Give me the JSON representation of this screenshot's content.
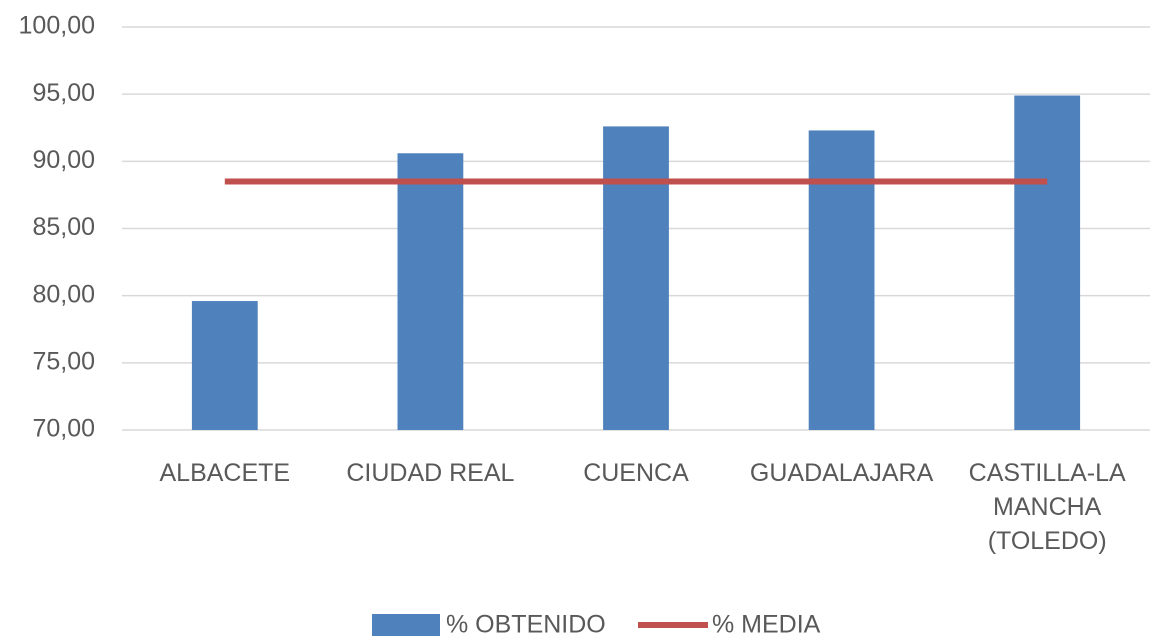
{
  "chart_data": {
    "type": "bar",
    "categories": [
      "ALBACETE",
      "CIUDAD REAL",
      "CUENCA",
      "GUADALAJARA",
      "CASTILLA-LA MANCHA (TOLEDO)"
    ],
    "series": [
      {
        "name": "% OBTENIDO",
        "type": "bar",
        "color": "#4f81bd",
        "values": [
          79.6,
          90.6,
          92.6,
          92.3,
          94.9
        ]
      },
      {
        "name": "% MEDIA",
        "type": "line",
        "color": "#c0504d",
        "values": [
          88.5,
          88.5,
          88.5,
          88.5,
          88.5
        ]
      }
    ],
    "ylim": [
      70,
      100
    ],
    "yticks": [
      {
        "value": 70,
        "label": "70,00"
      },
      {
        "value": 75,
        "label": "75,00"
      },
      {
        "value": 80,
        "label": "80,00"
      },
      {
        "value": 85,
        "label": "85,00"
      },
      {
        "value": 90,
        "label": "90,00"
      },
      {
        "value": 95,
        "label": "95,00"
      },
      {
        "value": 100,
        "label": "100,00"
      }
    ],
    "grid": true,
    "legend": "bottom"
  }
}
